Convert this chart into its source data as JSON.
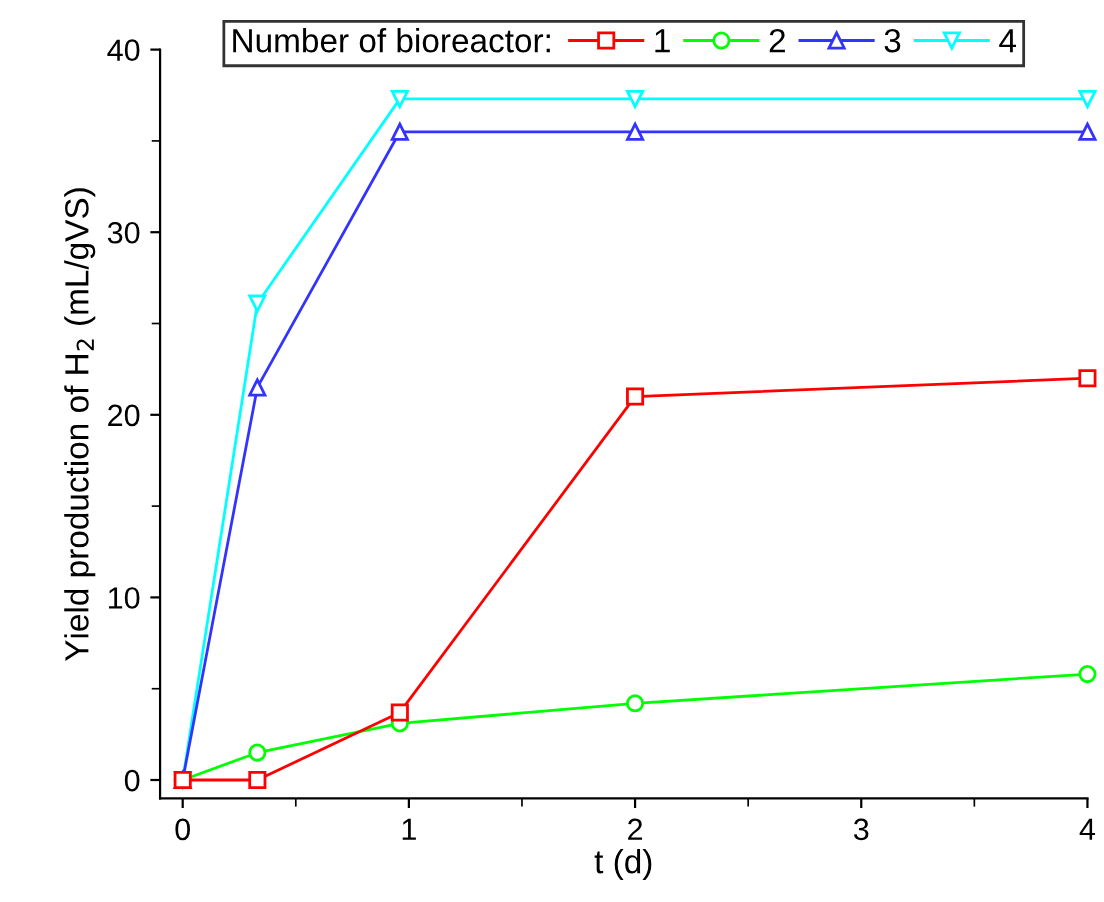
{
  "chart_data": {
    "type": "line",
    "xlabel": "t (d)",
    "ylabel": "Yield production of H$_{2}$ (mL/gVS)",
    "legend_title": "Number of bioreactor:",
    "legend": "top",
    "x": [
      0,
      0.33,
      0.96,
      2,
      4
    ],
    "xlim": [
      -0.1,
      4
    ],
    "xticks": [
      0,
      1,
      2,
      3,
      4
    ],
    "ylim": [
      -1,
      40
    ],
    "yticks": [
      0,
      10,
      20,
      30,
      40
    ],
    "grid": false,
    "line_style": "solid",
    "series": [
      {
        "name": "1",
        "color": "#ff0000",
        "marker": "square",
        "values": [
          0,
          0,
          3.7,
          21.0,
          22.0
        ]
      },
      {
        "name": "2",
        "color": "#00ff00",
        "marker": "circle",
        "values": [
          0,
          1.5,
          3.1,
          4.2,
          5.8
        ]
      },
      {
        "name": "3",
        "color": "#3333ff",
        "marker": "triangle",
        "values": [
          0,
          21.5,
          35.5,
          35.5,
          35.5
        ]
      },
      {
        "name": "4",
        "color": "#00ffff",
        "marker": "triangle_down",
        "values": [
          0,
          26.1,
          37.3,
          37.3,
          37.3
        ]
      }
    ]
  }
}
